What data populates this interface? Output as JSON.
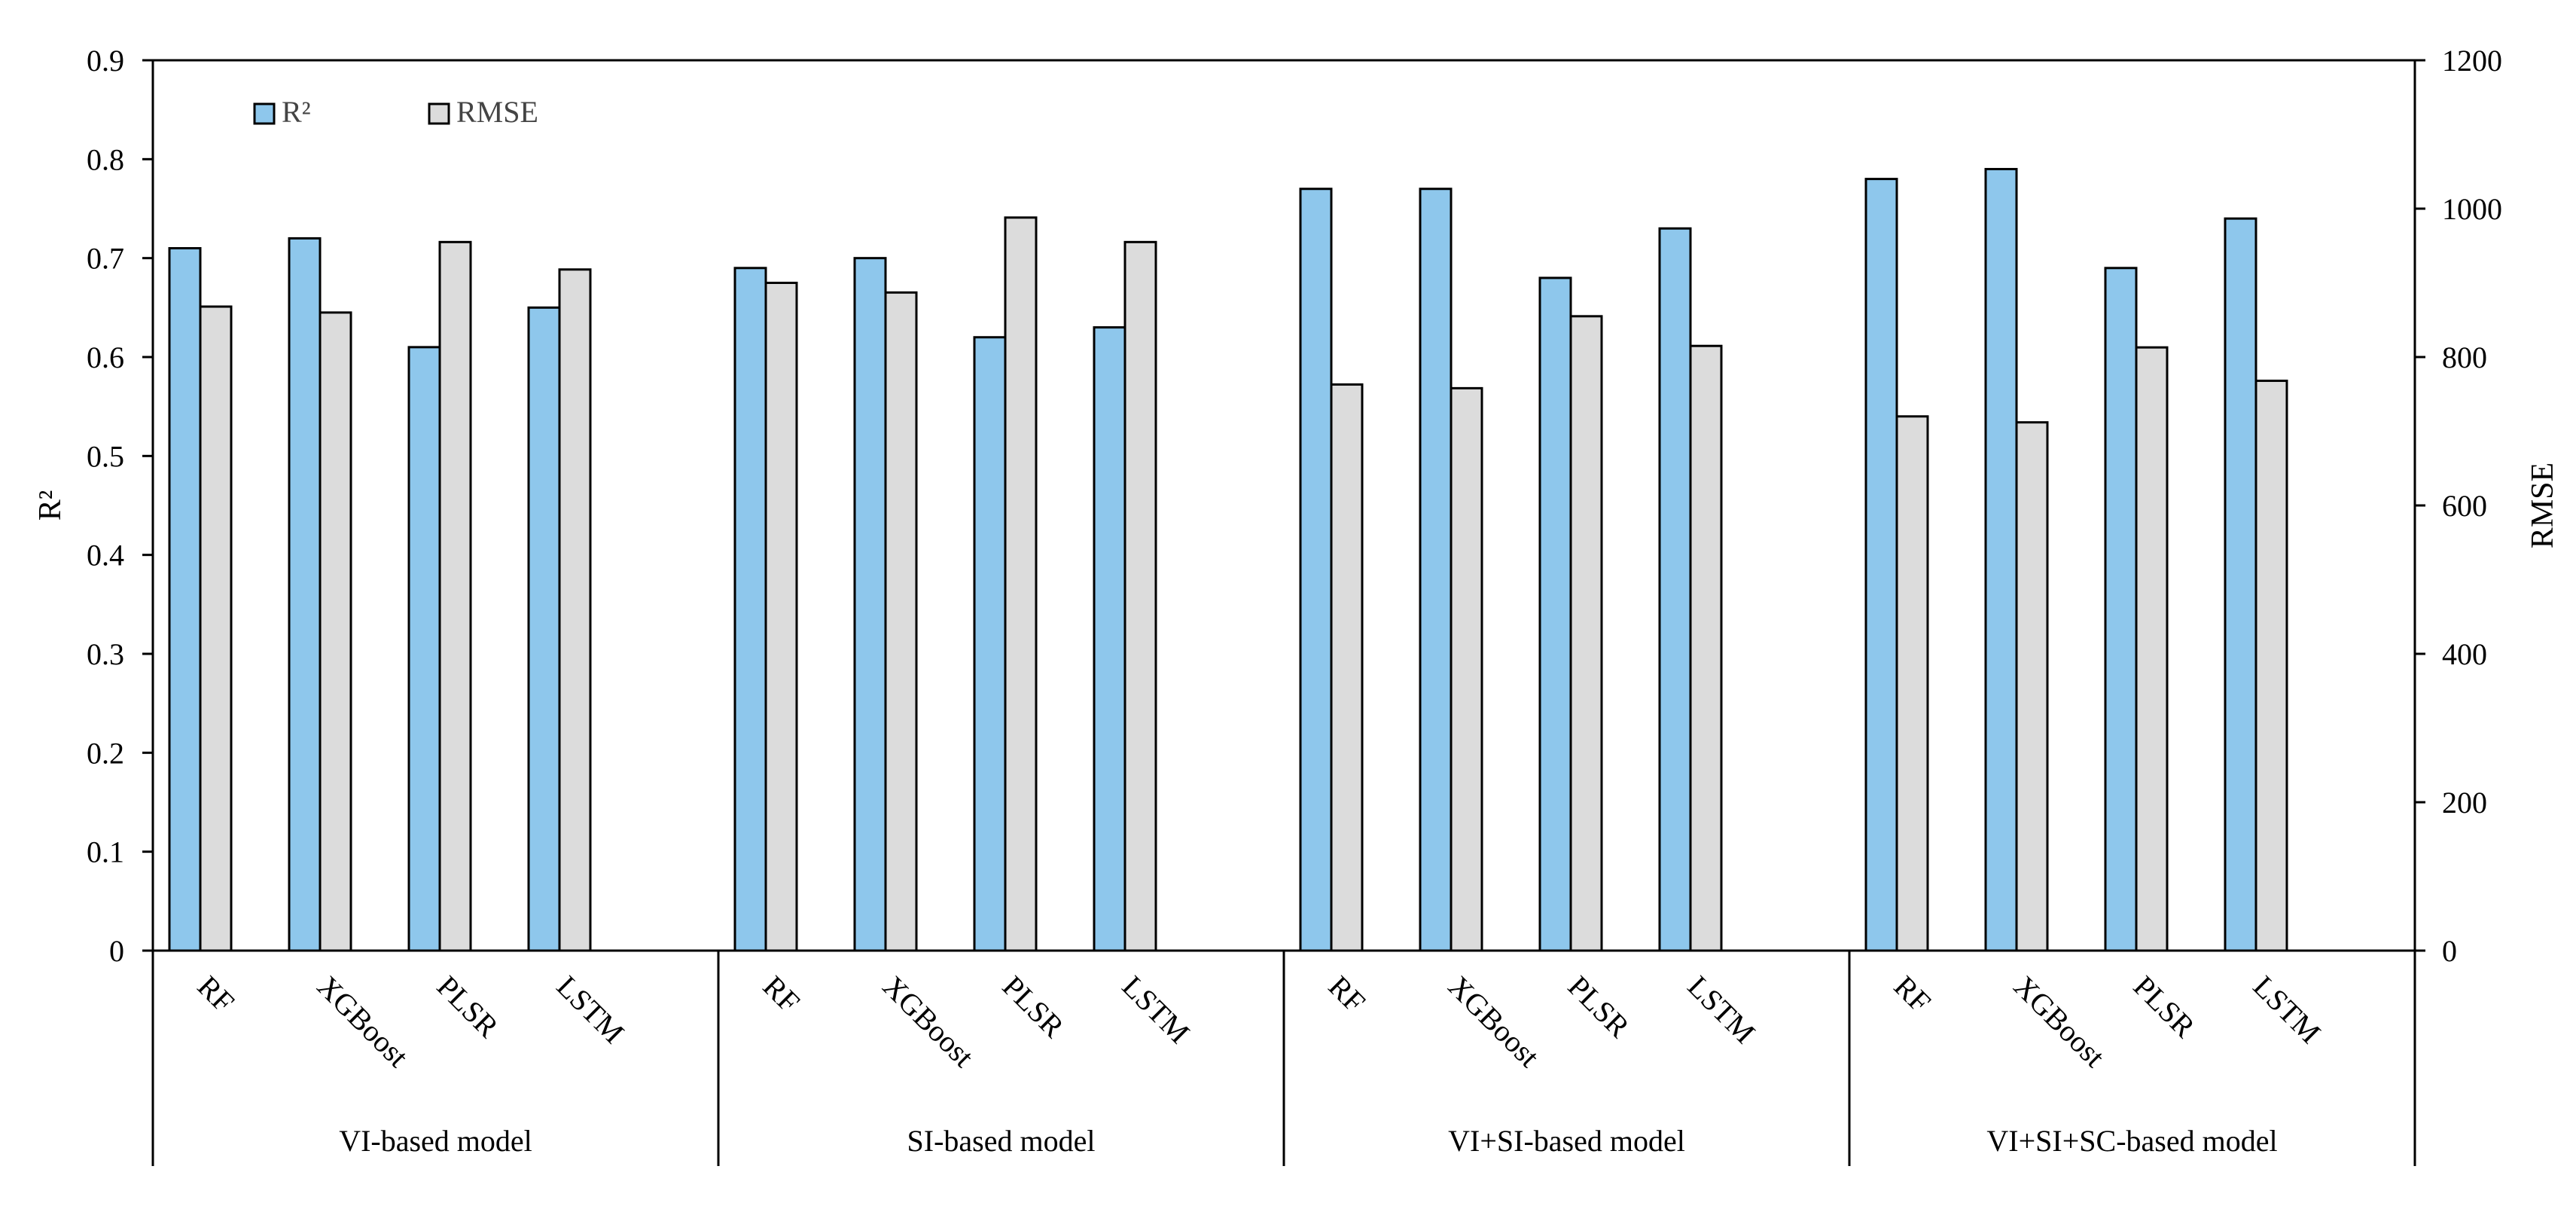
{
  "chart_data": {
    "type": "bar",
    "groups": [
      "VI-based model",
      "SI-based model",
      "VI+SI-based model",
      "VI+SI+SC-based model"
    ],
    "categories": [
      "RF",
      "XGBoost",
      "PLSR",
      "LSTM"
    ],
    "series": [
      {
        "name": "R²",
        "axis": "left",
        "color": "#8EC7EC",
        "values": [
          [
            0.71,
            0.72,
            0.61,
            0.65
          ],
          [
            0.69,
            0.7,
            0.62,
            0.63
          ],
          [
            0.77,
            0.77,
            0.68,
            0.73
          ],
          [
            0.78,
            0.79,
            0.69,
            0.74
          ]
        ]
      },
      {
        "name": "RMSE",
        "axis": "right",
        "color": "#DCDCDC",
        "values": [
          [
            868,
            860,
            955,
            918
          ],
          [
            900,
            887,
            988,
            955
          ],
          [
            763,
            758,
            855,
            815
          ],
          [
            720,
            712,
            813,
            768
          ]
        ]
      }
    ],
    "ylabel_left": "R²",
    "ylabel_right": "RMSE",
    "ylim_left": [
      0,
      0.9
    ],
    "ylim_right": [
      0,
      1200
    ],
    "yticks_left": [
      "0",
      "0.1",
      "0.2",
      "0.3",
      "0.4",
      "0.5",
      "0.6",
      "0.7",
      "0.8",
      "0.9"
    ],
    "yticks_right": [
      "0",
      "200",
      "400",
      "600",
      "800",
      "1000",
      "1200"
    ],
    "legend": [
      "R²",
      "RMSE"
    ],
    "legend_position": "top-left",
    "grid": false
  }
}
